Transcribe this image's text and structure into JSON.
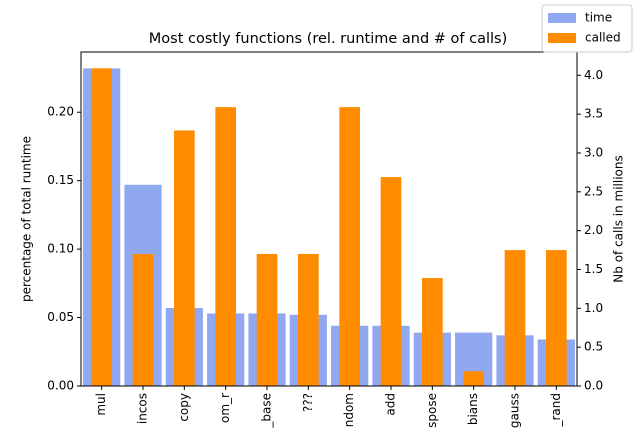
{
  "chart_data": {
    "type": "bar",
    "title": "Most costly functions (rel. runtime and # of calls)",
    "ylabel": "percentage of total runtime",
    "y2label": "Nb of calls in millions",
    "categories": [
      "mul",
      "incos",
      "copy",
      "om_r",
      "_base",
      "???",
      "ndom",
      "add",
      "spose",
      "bians",
      "gauss",
      "_rand"
    ],
    "series": [
      {
        "name": "time",
        "color": "#8fa8ef",
        "values": [
          0.232,
          0.147,
          0.057,
          0.053,
          0.053,
          0.052,
          0.044,
          0.044,
          0.039,
          0.039,
          0.037,
          0.034
        ]
      },
      {
        "name": "called",
        "color": "#ff8c00",
        "axis": "y2",
        "values": [
          4.09,
          1.7,
          3.29,
          3.59,
          1.7,
          1.7,
          3.59,
          2.69,
          1.39,
          0.19,
          1.75,
          1.75
        ]
      }
    ],
    "ylim": [
      0,
      0.244
    ],
    "yticks": [
      {
        "value": 0,
        "label": "0.00"
      },
      {
        "value": 0.05,
        "label": "0.05"
      },
      {
        "value": 0.1,
        "label": "0.10"
      },
      {
        "value": 0.15,
        "label": "0.15"
      },
      {
        "value": 0.2,
        "label": "0.20"
      }
    ],
    "y2lim": [
      0,
      4.3
    ],
    "y2ticks": [
      {
        "value": 0,
        "label": "0.0"
      },
      {
        "value": 0.5,
        "label": "0.5"
      },
      {
        "value": 1,
        "label": "1.0"
      },
      {
        "value": 1.5,
        "label": "1.5"
      },
      {
        "value": 2,
        "label": "2.0"
      },
      {
        "value": 2.5,
        "label": "2.5"
      },
      {
        "value": 3,
        "label": "3.0"
      },
      {
        "value": 3.5,
        "label": "3.5"
      },
      {
        "value": 4,
        "label": "4.0"
      }
    ],
    "legend": "upper right"
  }
}
